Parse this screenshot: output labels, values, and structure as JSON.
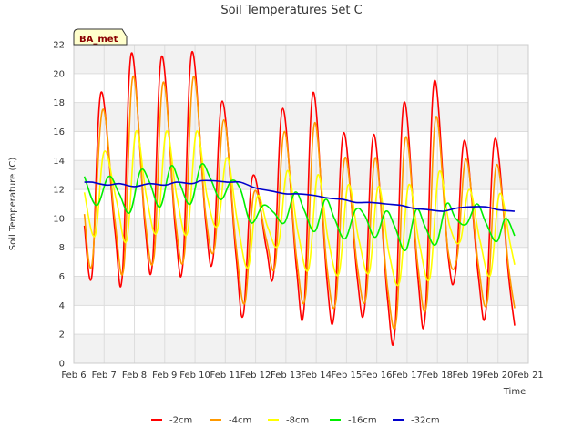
{
  "chart_data": {
    "type": "line",
    "title": "Soil Temperatures Set C",
    "xlabel": "Time",
    "ylabel": "Soil Temperature (C)",
    "site_label": "BA_met",
    "xlim": [
      6,
      21
    ],
    "ylim": [
      0,
      22
    ],
    "xticks": [
      6,
      7,
      8,
      9,
      10,
      11,
      12,
      13,
      14,
      15,
      16,
      17,
      18,
      19,
      20,
      21
    ],
    "xtick_labels": [
      "Feb 6",
      "Feb 7",
      "Feb 8",
      "Feb 9",
      "Feb 10",
      "Feb 11",
      "Feb 12",
      "Feb 13",
      "Feb 14",
      "Feb 15",
      "Feb 16",
      "Feb 17",
      "Feb 18",
      "Feb 19",
      "Feb 20",
      "Feb 21"
    ],
    "yticks": [
      0,
      2,
      4,
      6,
      8,
      10,
      12,
      14,
      16,
      18,
      20,
      22
    ],
    "ytick_labels": [
      "0",
      "2",
      "4",
      "6",
      "8",
      "10",
      "12",
      "14",
      "16",
      "18",
      "20",
      "22"
    ],
    "grid": true,
    "legend_position": "bottom",
    "series": [
      {
        "name": "-2cm",
        "color": "#ff0000",
        "x": [
          6.35,
          6.6,
          6.9,
          7.35,
          7.6,
          7.9,
          8.35,
          8.6,
          8.9,
          9.35,
          9.6,
          9.9,
          10.35,
          10.6,
          10.9,
          11.35,
          11.6,
          11.9,
          12.35,
          12.6,
          12.9,
          13.35,
          13.6,
          13.9,
          14.35,
          14.6,
          14.9,
          15.35,
          15.6,
          15.9,
          16.35,
          16.6,
          16.9,
          17.35,
          17.6,
          17.9,
          18.35,
          18.6,
          18.9,
          19.35,
          19.6,
          19.9,
          20.35,
          20.55
        ],
        "y": [
          9.5,
          6.1,
          18.7,
          9.3,
          6.0,
          21.4,
          9.5,
          7.0,
          21.2,
          9.3,
          6.9,
          21.5,
          9.8,
          7.3,
          18.1,
          7.5,
          3.4,
          12.9,
          8.0,
          6.3,
          17.6,
          6.5,
          3.8,
          18.7,
          5.8,
          3.5,
          15.9,
          6.0,
          3.9,
          15.8,
          4.5,
          2.3,
          18.0,
          6.0,
          3.4,
          19.5,
          7.5,
          6.3,
          15.4,
          6.0,
          3.6,
          15.5,
          6.0,
          2.6
        ]
      },
      {
        "name": "-4cm",
        "color": "#ff9900",
        "x": [
          6.35,
          6.6,
          6.95,
          7.35,
          7.65,
          7.95,
          8.35,
          8.65,
          8.95,
          9.35,
          9.65,
          9.95,
          10.35,
          10.65,
          10.95,
          11.35,
          11.65,
          11.95,
          12.35,
          12.65,
          12.95,
          13.35,
          13.65,
          13.95,
          14.35,
          14.65,
          14.95,
          15.35,
          15.65,
          15.95,
          16.35,
          16.65,
          16.95,
          17.35,
          17.65,
          17.95,
          18.35,
          18.65,
          18.95,
          19.35,
          19.65,
          19.95,
          20.35,
          20.55
        ],
        "y": [
          10.3,
          6.8,
          17.5,
          10.0,
          6.6,
          19.8,
          10.0,
          7.4,
          19.4,
          10.0,
          7.5,
          19.8,
          10.3,
          8.0,
          16.8,
          8.2,
          4.2,
          11.8,
          8.6,
          6.8,
          16.0,
          7.3,
          4.7,
          16.6,
          6.7,
          4.3,
          14.2,
          6.8,
          4.6,
          14.2,
          5.3,
          3.1,
          15.6,
          6.8,
          4.2,
          17.0,
          7.8,
          7.3,
          14.1,
          6.8,
          4.3,
          13.7,
          6.6,
          3.8
        ]
      },
      {
        "name": "-8cm",
        "color": "#ffff00",
        "x": [
          6.35,
          6.7,
          7.0,
          7.4,
          7.75,
          8.05,
          8.4,
          8.75,
          9.05,
          9.4,
          9.75,
          10.05,
          10.4,
          10.75,
          11.05,
          11.4,
          11.75,
          12.05,
          12.4,
          12.75,
          13.05,
          13.4,
          13.75,
          14.05,
          14.4,
          14.75,
          15.05,
          15.4,
          15.75,
          16.05,
          16.4,
          16.75,
          17.05,
          17.4,
          17.75,
          18.05,
          18.4,
          18.75,
          19.05,
          19.4,
          19.75,
          20.05,
          20.4,
          20.55
        ],
        "y": [
          11.8,
          8.8,
          14.6,
          11.3,
          8.5,
          16.0,
          11.5,
          9.1,
          16.0,
          11.5,
          9.0,
          16.0,
          11.5,
          9.5,
          14.2,
          9.8,
          6.6,
          11.5,
          9.4,
          8.2,
          13.3,
          9.0,
          6.5,
          13.0,
          8.5,
          6.2,
          12.3,
          8.6,
          6.3,
          12.2,
          7.6,
          5.6,
          12.3,
          8.3,
          5.9,
          13.2,
          9.5,
          8.4,
          12.0,
          8.5,
          6.1,
          11.7,
          8.3,
          6.8
        ]
      },
      {
        "name": "-16cm",
        "color": "#00ee00",
        "x": [
          6.35,
          6.75,
          7.15,
          7.5,
          7.85,
          8.2,
          8.5,
          8.85,
          9.2,
          9.5,
          9.85,
          10.2,
          10.5,
          10.85,
          11.2,
          11.5,
          11.85,
          12.25,
          12.6,
          12.95,
          13.3,
          13.6,
          13.95,
          14.3,
          14.6,
          14.95,
          15.3,
          15.6,
          15.95,
          16.3,
          16.6,
          16.95,
          17.3,
          17.6,
          17.95,
          18.3,
          18.6,
          18.95,
          19.3,
          19.6,
          19.95,
          20.25,
          20.55
        ],
        "y": [
          12.9,
          10.9,
          12.9,
          11.7,
          10.4,
          13.3,
          12.5,
          10.8,
          13.6,
          12.4,
          11.0,
          13.7,
          12.8,
          11.3,
          12.6,
          12.0,
          9.7,
          10.9,
          10.4,
          9.7,
          11.8,
          10.6,
          9.1,
          11.3,
          10.0,
          8.6,
          10.6,
          10.2,
          8.7,
          10.5,
          9.4,
          7.8,
          10.6,
          9.4,
          8.2,
          11.0,
          10.0,
          9.6,
          11.0,
          9.7,
          8.4,
          10.0,
          8.8
        ]
      },
      {
        "name": "-32cm",
        "color": "#0000cc",
        "x": [
          6.35,
          6.6,
          7.1,
          7.5,
          8.0,
          8.5,
          9.0,
          9.4,
          9.9,
          10.2,
          10.6,
          11.1,
          11.5,
          12.0,
          12.5,
          13.0,
          13.4,
          13.9,
          14.4,
          14.9,
          15.3,
          15.8,
          16.3,
          16.8,
          17.2,
          17.7,
          18.2,
          18.6,
          19.1,
          19.6,
          20.0,
          20.55
        ],
        "y": [
          12.5,
          12.5,
          12.3,
          12.4,
          12.2,
          12.4,
          12.3,
          12.5,
          12.4,
          12.6,
          12.6,
          12.5,
          12.5,
          12.1,
          11.9,
          11.7,
          11.7,
          11.6,
          11.4,
          11.3,
          11.1,
          11.1,
          11.0,
          10.9,
          10.7,
          10.6,
          10.5,
          10.7,
          10.8,
          10.8,
          10.6,
          10.5
        ]
      }
    ]
  }
}
